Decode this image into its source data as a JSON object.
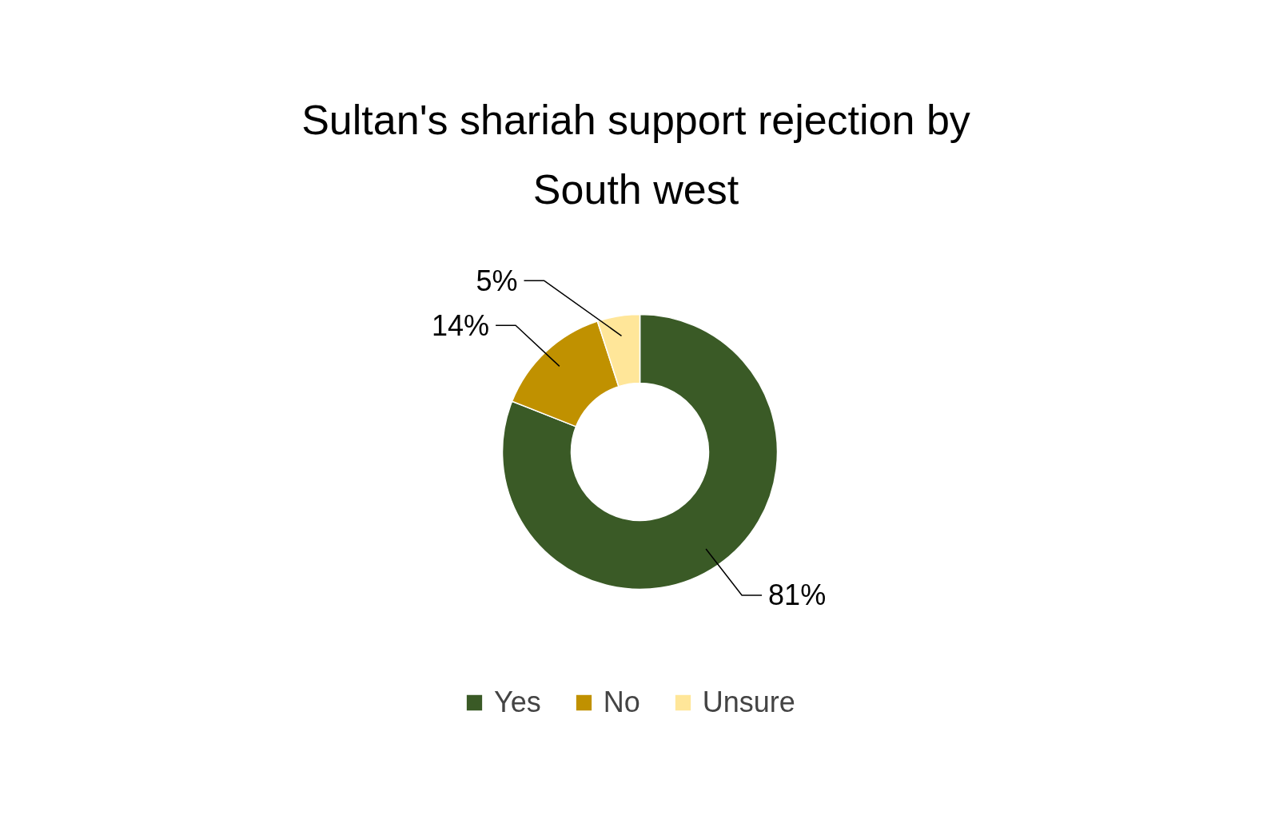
{
  "chart_data": {
    "type": "donut",
    "title": "Sultan's shariah support rejection by South west",
    "categories": [
      "Yes",
      "No",
      "Unsure"
    ],
    "values": [
      81,
      14,
      5
    ],
    "colors": [
      "#3a5a26",
      "#c09100",
      "#ffe699"
    ],
    "value_labels": [
      "81%",
      "14%",
      "5%"
    ],
    "legend": "bottom"
  }
}
